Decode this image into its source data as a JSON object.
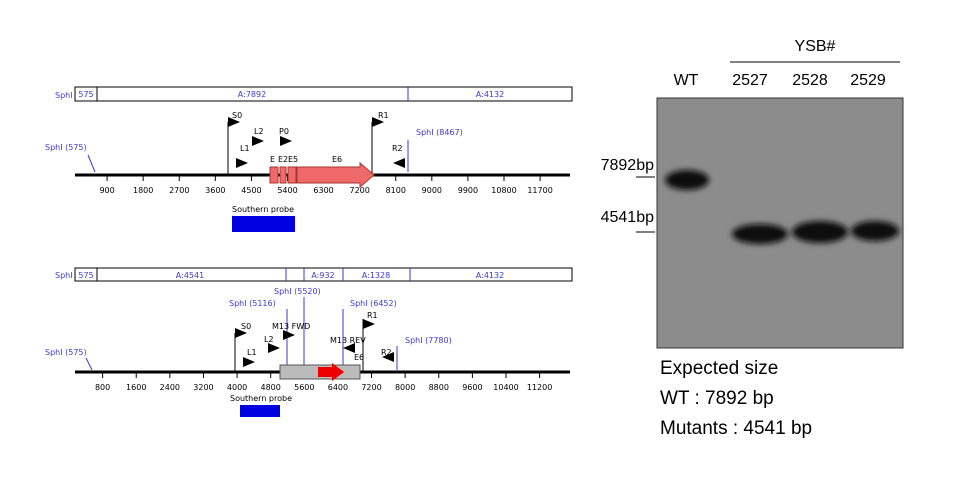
{
  "maps": [
    {
      "bar": {
        "site": "SphI",
        "start": "575",
        "fragments": [
          "A:7892",
          "A:4132"
        ]
      },
      "sites": [
        "SphI (575)",
        "SphI (8467)"
      ],
      "primers": [
        "S0",
        "L2",
        "P0",
        "L1",
        "R1",
        "R2"
      ],
      "exons": [
        "E",
        "E2",
        "E5",
        "E6"
      ],
      "axis_ticks": [
        900,
        1800,
        2700,
        3600,
        4500,
        5400,
        6300,
        7200,
        8100,
        9000,
        9900,
        10800,
        11700
      ],
      "probe": "Southern probe"
    },
    {
      "bar": {
        "site": "SphI",
        "start": "575",
        "fragments": [
          "A:4541",
          "A:932",
          "A:1328",
          "A:4132"
        ]
      },
      "sites": [
        "SphI (5520)",
        "SphI (5116)",
        "SphI (6452)",
        "SphI (575)",
        "SphI (7780)"
      ],
      "primers": [
        "S0",
        "M13 FWD",
        "L2",
        "L1",
        "M13 REV",
        "R1",
        "R2"
      ],
      "exons": [
        "E6"
      ],
      "axis_ticks": [
        800,
        1600,
        2400,
        3200,
        4000,
        4800,
        5600,
        6400,
        7200,
        8000,
        8800,
        9600,
        10400,
        11200
      ],
      "probe": "Southern probe"
    }
  ],
  "gel": {
    "group": "YSB#",
    "lanes": [
      "WT",
      "2527",
      "2528",
      "2529"
    ],
    "markers": [
      "7892bp",
      "4541bp"
    ],
    "notes": [
      "Expected size",
      "WT : 7892 bp",
      "Mutants : 4541 bp"
    ]
  }
}
